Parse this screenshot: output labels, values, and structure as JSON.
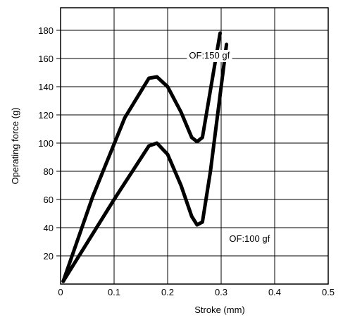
{
  "chart_data": {
    "type": "line",
    "xlabel": "Stroke (mm)",
    "ylabel": "Operating force (g)",
    "xlim": [
      0,
      0.5
    ],
    "ylim": [
      0,
      196
    ],
    "x_ticks": [
      "0",
      "0.1",
      "0.2",
      "0.3",
      "0.4",
      "0.5"
    ],
    "y_ticks": [
      "20",
      "40",
      "60",
      "80",
      "100",
      "120",
      "140",
      "160",
      "180"
    ],
    "grid": true,
    "series": [
      {
        "name": "OF:150 gf",
        "x": [
          0.005,
          0.06,
          0.12,
          0.165,
          0.18,
          0.2,
          0.225,
          0.245,
          0.255,
          0.265,
          0.298
        ],
        "y": [
          2,
          62,
          118,
          146,
          147,
          140,
          122,
          104,
          101,
          104,
          178
        ]
      },
      {
        "name": "OF:100 gf",
        "x": [
          0.005,
          0.1,
          0.165,
          0.18,
          0.2,
          0.225,
          0.245,
          0.255,
          0.265,
          0.28,
          0.31
        ],
        "y": [
          2,
          60,
          98,
          100,
          92,
          70,
          48,
          42,
          44,
          80,
          170
        ]
      }
    ],
    "annotations": [
      {
        "text": "OF:150 gf",
        "x": 0.24,
        "y": 160
      },
      {
        "text": "OF:100 gf",
        "x": 0.315,
        "y": 30
      }
    ]
  }
}
